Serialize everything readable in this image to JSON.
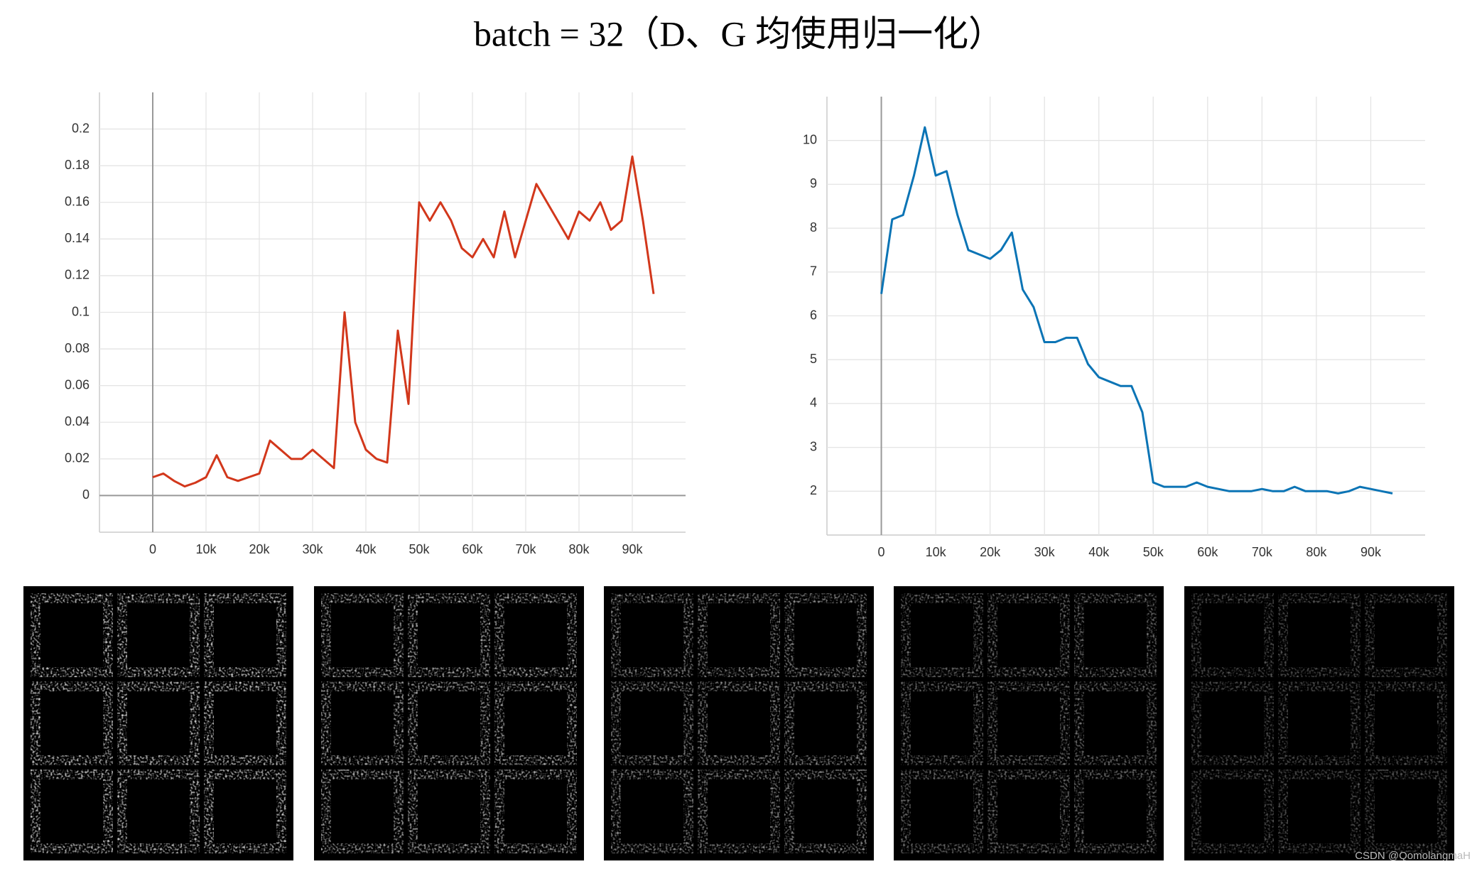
{
  "title": "batch = 32（D、G 均使用归一化）",
  "watermark": "CSDN @QomolangmaH",
  "chart_data": [
    {
      "type": "line",
      "color": "#d2371b",
      "grid": true,
      "x": [
        0,
        2000,
        4000,
        6000,
        8000,
        10000,
        12000,
        14000,
        16000,
        18000,
        20000,
        22000,
        24000,
        26000,
        28000,
        30000,
        32000,
        34000,
        36000,
        38000,
        40000,
        42000,
        44000,
        46000,
        48000,
        50000,
        52000,
        54000,
        56000,
        58000,
        60000,
        62000,
        64000,
        66000,
        68000,
        70000,
        72000,
        74000,
        76000,
        78000,
        80000,
        82000,
        84000,
        86000,
        88000,
        90000,
        92000,
        94000
      ],
      "values": [
        0.01,
        0.012,
        0.008,
        0.005,
        0.007,
        0.01,
        0.022,
        0.01,
        0.008,
        0.01,
        0.012,
        0.03,
        0.025,
        0.02,
        0.02,
        0.025,
        0.02,
        0.015,
        0.1,
        0.04,
        0.025,
        0.02,
        0.018,
        0.09,
        0.05,
        0.16,
        0.15,
        0.16,
        0.15,
        0.135,
        0.13,
        0.14,
        0.13,
        0.155,
        0.13,
        0.15,
        0.17,
        0.16,
        0.15,
        0.14,
        0.155,
        0.15,
        0.16,
        0.145,
        0.15,
        0.185,
        0.15,
        0.11
      ],
      "xlim": [
        -10000,
        100000
      ],
      "xticks": [
        0,
        {
          "value": 10000,
          "label": "10k"
        },
        {
          "value": 20000,
          "label": "20k"
        },
        {
          "value": 30000,
          "label": "30k"
        },
        {
          "value": 40000,
          "label": "40k"
        },
        {
          "value": 50000,
          "label": "50k"
        },
        {
          "value": 60000,
          "label": "60k"
        },
        {
          "value": 70000,
          "label": "70k"
        },
        {
          "value": 80000,
          "label": "80k"
        },
        {
          "value": 90000,
          "label": "90k"
        }
      ],
      "ylim": [
        -0.02,
        0.22
      ],
      "yticks": [
        0,
        0.02,
        0.04,
        0.06,
        0.08,
        0.1,
        0.12,
        0.14,
        0.16,
        0.18,
        0.2
      ]
    },
    {
      "type": "line",
      "color": "#0b74b5",
      "grid": true,
      "x": [
        0,
        2000,
        4000,
        6000,
        8000,
        10000,
        12000,
        14000,
        16000,
        18000,
        20000,
        22000,
        24000,
        26000,
        28000,
        30000,
        32000,
        34000,
        36000,
        38000,
        40000,
        42000,
        44000,
        46000,
        48000,
        50000,
        52000,
        54000,
        56000,
        58000,
        60000,
        62000,
        64000,
        66000,
        68000,
        70000,
        72000,
        74000,
        76000,
        78000,
        80000,
        82000,
        84000,
        86000,
        88000,
        90000,
        92000,
        94000
      ],
      "values": [
        6.5,
        8.2,
        8.3,
        9.2,
        10.3,
        9.2,
        9.3,
        8.3,
        7.5,
        7.4,
        7.3,
        7.5,
        7.9,
        6.6,
        6.2,
        5.4,
        5.4,
        5.5,
        5.5,
        4.9,
        4.6,
        4.5,
        4.4,
        4.4,
        3.8,
        2.2,
        2.1,
        2.1,
        2.1,
        2.2,
        2.1,
        2.05,
        2.0,
        2.0,
        2.0,
        2.05,
        2.0,
        2.0,
        2.1,
        2.0,
        2.0,
        2.0,
        1.95,
        2.0,
        2.1,
        2.05,
        2.0,
        1.95
      ],
      "xlim": [
        -10000,
        100000
      ],
      "xticks": [
        0,
        {
          "value": 10000,
          "label": "10k"
        },
        {
          "value": 20000,
          "label": "20k"
        },
        {
          "value": 30000,
          "label": "30k"
        },
        {
          "value": 40000,
          "label": "40k"
        },
        {
          "value": 50000,
          "label": "50k"
        },
        {
          "value": 60000,
          "label": "60k"
        },
        {
          "value": 70000,
          "label": "70k"
        },
        {
          "value": 80000,
          "label": "80k"
        },
        {
          "value": 90000,
          "label": "90k"
        }
      ],
      "ylim": [
        1,
        11
      ],
      "yticks": [
        2,
        3,
        4,
        5,
        6,
        7,
        8,
        9,
        10
      ]
    }
  ]
}
